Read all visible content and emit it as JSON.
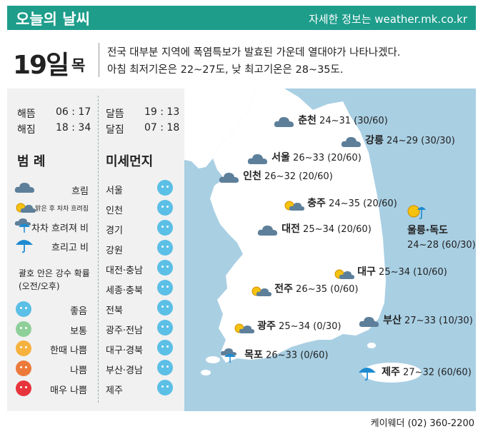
{
  "header": {
    "title": "오늘의 날씨",
    "site": "자세한 정보는 weather.mk.co.kr"
  },
  "date": {
    "day": "19일",
    "weekday": "목"
  },
  "summary": {
    "line1": "전국 대부분 지역에 폭염특보가 발효된 가운데 열대야가 나타나겠다.",
    "line2": "아침 최저기온은 22~27도, 낮 최고기온은 28~35도."
  },
  "sun": {
    "sunrise_label": "해뜸",
    "sunrise": "06 : 17",
    "sunset_label": "해짐",
    "sunset": "18 : 34"
  },
  "moon": {
    "moonrise_label": "달뜸",
    "moonrise": "19 : 13",
    "moonset_label": "달짐",
    "moonset": "07 : 18"
  },
  "legend": {
    "title": "범 례",
    "items": [
      {
        "label": "흐림",
        "icon": "cloud-icon"
      },
      {
        "label": "맑은 후 차차 흐려짐",
        "icon": "sun-cloud-icon"
      },
      {
        "label": "차차 흐려져 비",
        "icon": "cloud-umbrella-icon"
      },
      {
        "label": "흐리고 비",
        "icon": "umbrella-icon"
      }
    ],
    "note_line1": "괄호 안은 강수 확률",
    "note_line2": "(오전/오후)",
    "grades": [
      {
        "label": "좋음",
        "color": "#5bbfe6"
      },
      {
        "label": "보통",
        "color": "#8fcf9a"
      },
      {
        "label": "한때 나쁨",
        "color": "#f6b13e"
      },
      {
        "label": "나쁨",
        "color": "#ec7a3a"
      },
      {
        "label": "매우 나쁨",
        "color": "#e8343c"
      }
    ]
  },
  "dust": {
    "title": "미세먼지",
    "regions": [
      {
        "name": "서울",
        "grade_color": "#5bbfe6"
      },
      {
        "name": "인천",
        "grade_color": "#5bbfe6"
      },
      {
        "name": "경기",
        "grade_color": "#5bbfe6"
      },
      {
        "name": "강원",
        "grade_color": "#5bbfe6"
      },
      {
        "name": "대전·충남",
        "grade_color": "#5bbfe6"
      },
      {
        "name": "세종·충북",
        "grade_color": "#5bbfe6"
      },
      {
        "name": "전북",
        "grade_color": "#5bbfe6"
      },
      {
        "name": "광주·전남",
        "grade_color": "#5bbfe6"
      },
      {
        "name": "대구·경북",
        "grade_color": "#5bbfe6"
      },
      {
        "name": "부산·경남",
        "grade_color": "#5bbfe6"
      },
      {
        "name": "제주",
        "grade_color": "#5bbfe6"
      }
    ]
  },
  "cities": {
    "chuncheon": {
      "name": "춘천",
      "temp": "24~31 (30/60)",
      "icon": "cloud-icon"
    },
    "gangneung": {
      "name": "강릉",
      "temp": "24~29 (30/30)",
      "icon": "cloud-icon"
    },
    "seoul": {
      "name": "서울",
      "temp": "26~33 (20/60)",
      "icon": "cloud-icon"
    },
    "incheon": {
      "name": "인천",
      "temp": "26~32 (20/60)",
      "icon": "cloud-icon"
    },
    "cheongju": {
      "name": "충주",
      "temp": "24~35 (20/60)",
      "icon": "sun-cloud-icon"
    },
    "daejeon": {
      "name": "대전",
      "temp": "25~34 (20/60)",
      "icon": "cloud-icon"
    },
    "ulleung": {
      "name": "울릉·독도",
      "temp": "24~28 (60/30)",
      "icon": "sun-umbrella-icon"
    },
    "daegu": {
      "name": "대구",
      "temp": "25~34 (10/60)",
      "icon": "sun-cloud-icon"
    },
    "jeonju": {
      "name": "전주",
      "temp": "26~35 (0/60)",
      "icon": "sun-cloud-icon"
    },
    "gwangju": {
      "name": "광주",
      "temp": "25~34 (0/30)",
      "icon": "sun-cloud-icon"
    },
    "busan": {
      "name": "부산",
      "temp": "27~33 (10/30)",
      "icon": "cloud-icon"
    },
    "mokpo": {
      "name": "목포",
      "temp": "26~33 (0/60)",
      "icon": "cloud-umbrella-icon"
    },
    "jeju": {
      "name": "제주",
      "temp": "27~32 (60/60)",
      "icon": "umbrella-icon"
    }
  },
  "footer": {
    "source": "케이웨더 (02) 360-2200"
  },
  "colors": {
    "brand": "#1e9d8b",
    "sea": "#a9cfe3",
    "land": "#ffffff",
    "panel": "#f1f1f1"
  }
}
